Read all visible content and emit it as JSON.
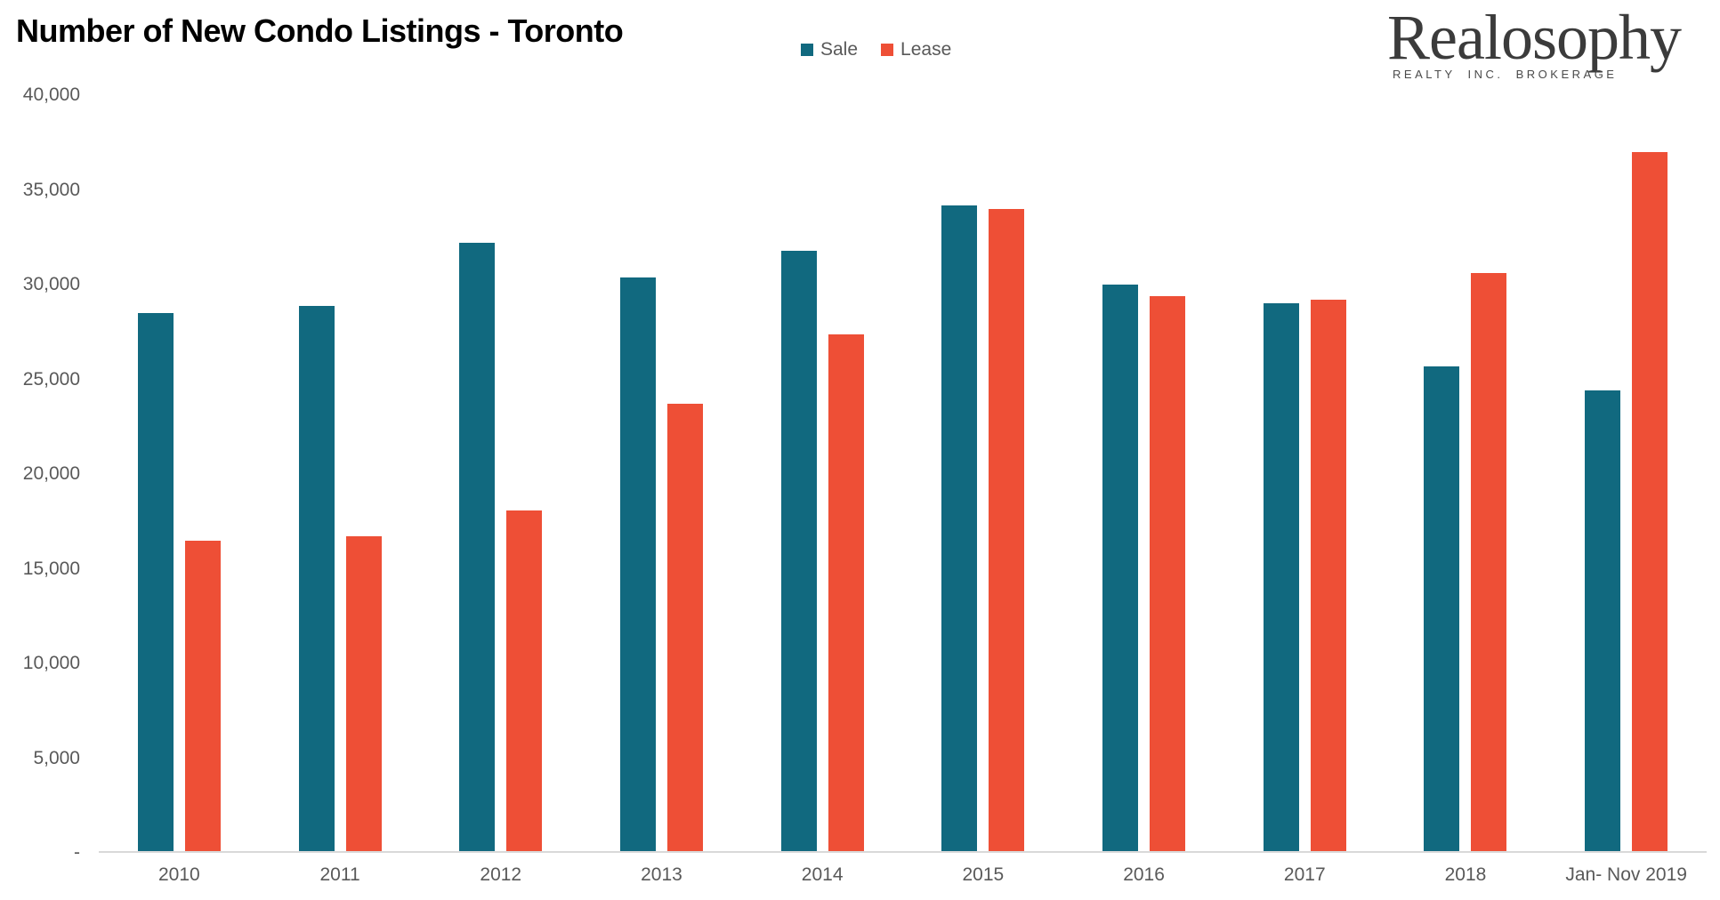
{
  "title": "Number of New Condo Listings - Toronto",
  "legend": {
    "items": [
      {
        "label": "Sale",
        "color": "#11697F"
      },
      {
        "label": "Lease",
        "color": "#EE4F36"
      }
    ]
  },
  "logo": {
    "wordmark": "Realosophy",
    "subtitle": "REALTY INC. BROKERAGE"
  },
  "colors": {
    "sale": "#11697F",
    "lease": "#EE4F36",
    "axis_line": "#d9d9d9",
    "axis_text": "#595959"
  },
  "chart_data": {
    "type": "bar",
    "title": "Number of New Condo Listings - Toronto",
    "categories": [
      "2010",
      "2011",
      "2012",
      "2013",
      "2014",
      "2015",
      "2016",
      "2017",
      "2018",
      "Jan- Nov 2019"
    ],
    "series": [
      {
        "name": "Sale",
        "color": "#11697F",
        "values": [
          28400,
          28800,
          32100,
          30300,
          31700,
          34100,
          29900,
          28900,
          25600,
          24300
        ]
      },
      {
        "name": "Lease",
        "color": "#EE4F36",
        "values": [
          16400,
          16600,
          18000,
          23600,
          27300,
          33900,
          29300,
          29100,
          30500,
          36900
        ]
      }
    ],
    "xlabel": "",
    "ylabel": "",
    "ylim": [
      0,
      40000
    ],
    "yticks": [
      {
        "label": "40,000",
        "value": 40000
      },
      {
        "label": "35,000",
        "value": 35000
      },
      {
        "label": "30,000",
        "value": 30000
      },
      {
        "label": "25,000",
        "value": 25000
      },
      {
        "label": "20,000",
        "value": 20000
      },
      {
        "label": "15,000",
        "value": 15000
      },
      {
        "label": "10,000",
        "value": 10000
      },
      {
        "label": "5,000",
        "value": 5000
      },
      {
        "label": "-",
        "value": 0
      }
    ],
    "grid": false,
    "legend_position": "top-center"
  }
}
